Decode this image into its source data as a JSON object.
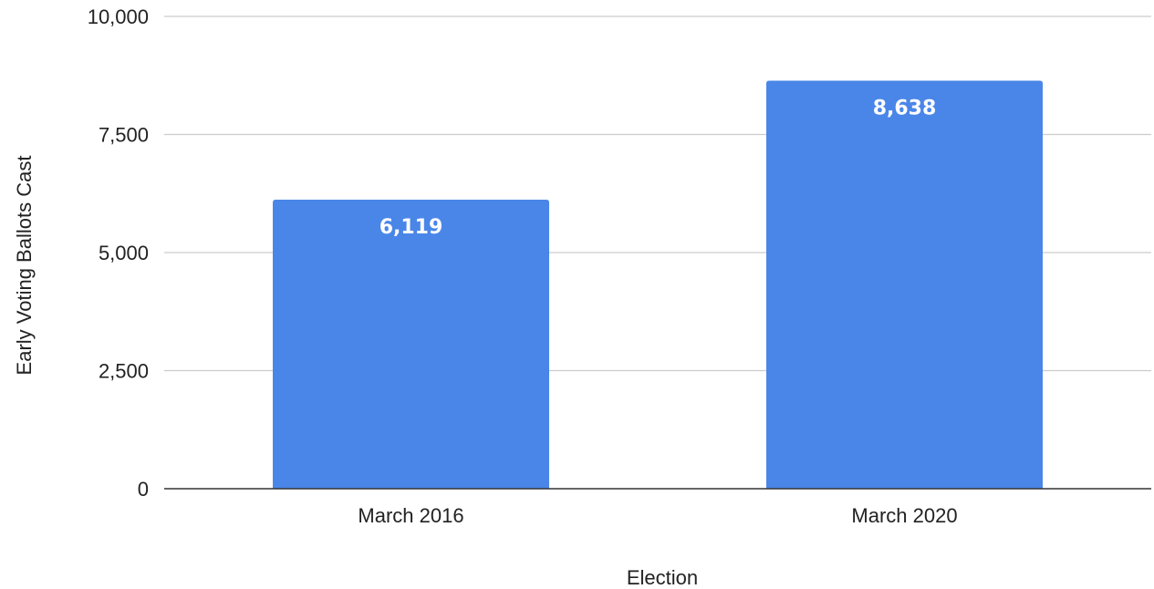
{
  "chart_data": {
    "type": "bar",
    "title": "",
    "xlabel": "Election",
    "ylabel": "Early Voting Ballots Cast",
    "categories": [
      "March 2016",
      "March 2020"
    ],
    "series": [
      {
        "values": [
          6119,
          8638
        ],
        "data_labels": [
          "6,119",
          "8,638"
        ],
        "color": "#4a86e8"
      }
    ],
    "ylim": [
      0,
      10000
    ],
    "yticks": [
      0,
      2500,
      5000,
      7500,
      10000
    ],
    "ytick_labels": [
      "0",
      "2,500",
      "5,000",
      "7,500",
      "10,000"
    ],
    "grid": true,
    "legend": "none"
  }
}
